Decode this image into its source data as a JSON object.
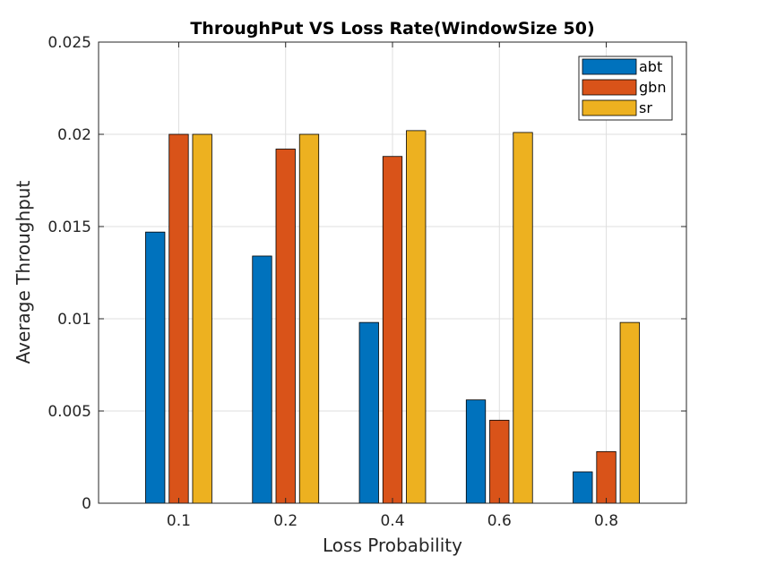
{
  "chart_data": {
    "type": "bar",
    "title": "ThroughPut VS Loss Rate(WindowSize 50)",
    "xlabel": "Loss Probability",
    "ylabel": "Average Throughput",
    "categories": [
      "0.1",
      "0.2",
      "0.4",
      "0.6",
      "0.8"
    ],
    "series": [
      {
        "name": "abt",
        "color": "#0072BD",
        "values": [
          0.0147,
          0.0134,
          0.0098,
          0.0056,
          0.0017
        ]
      },
      {
        "name": "gbn",
        "color": "#D95319",
        "values": [
          0.02,
          0.0192,
          0.0188,
          0.0045,
          0.0028
        ]
      },
      {
        "name": "sr",
        "color": "#EDB120",
        "values": [
          0.02,
          0.02,
          0.0202,
          0.0201,
          0.0098
        ]
      }
    ],
    "ylim": [
      0,
      0.025
    ],
    "yticks": [
      0,
      0.005,
      0.01,
      0.015,
      0.02,
      0.025
    ],
    "ytick_labels": [
      "0",
      "0.005",
      "0.01",
      "0.015",
      "0.02",
      "0.025"
    ],
    "grid": true,
    "legend_position": "top-right"
  }
}
